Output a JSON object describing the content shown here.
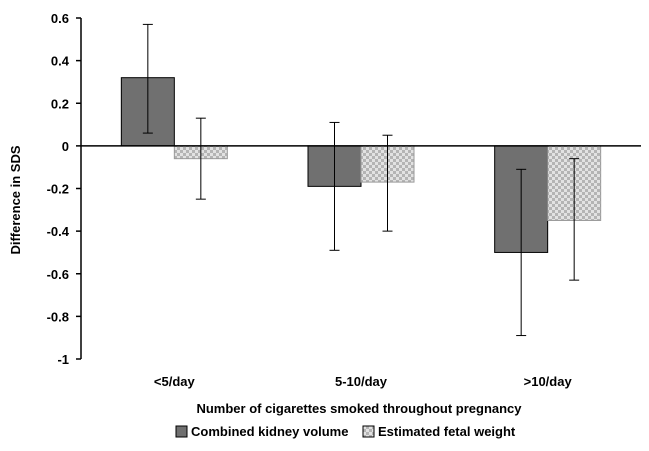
{
  "chart_data": {
    "type": "bar",
    "categories": [
      "<5/day",
      "5-10/day",
      ">10/day"
    ],
    "series": [
      {
        "name": "Combined kidney volume",
        "values": [
          0.32,
          -0.19,
          -0.5
        ],
        "error_low": [
          0.06,
          -0.49,
          -0.89
        ],
        "error_high": [
          0.57,
          0.11,
          -0.11
        ],
        "color": "#707070",
        "pattern": "solid"
      },
      {
        "name": "Estimated fetal weight",
        "values": [
          -0.06,
          -0.17,
          -0.35
        ],
        "error_low": [
          -0.25,
          -0.4,
          -0.63
        ],
        "error_high": [
          0.13,
          0.05,
          -0.06
        ],
        "color": "#cfcfcf",
        "pattern": "checkered"
      }
    ],
    "title": "",
    "xlabel": "Number of cigarettes smoked throughout pregnancy",
    "ylabel": "Difference in SDS",
    "ylim": [
      -1,
      0.6
    ],
    "yticks": [
      0.6,
      0.4,
      0.2,
      0,
      -0.2,
      -0.4,
      -0.6,
      -0.8,
      -1
    ],
    "ytick_labels": [
      "0.6",
      "0.4",
      "0.2",
      "0",
      "-0.2",
      "-0.4",
      "-0.6",
      "-0.8",
      "-1"
    ],
    "grid": false,
    "legend_position": "bottom"
  }
}
